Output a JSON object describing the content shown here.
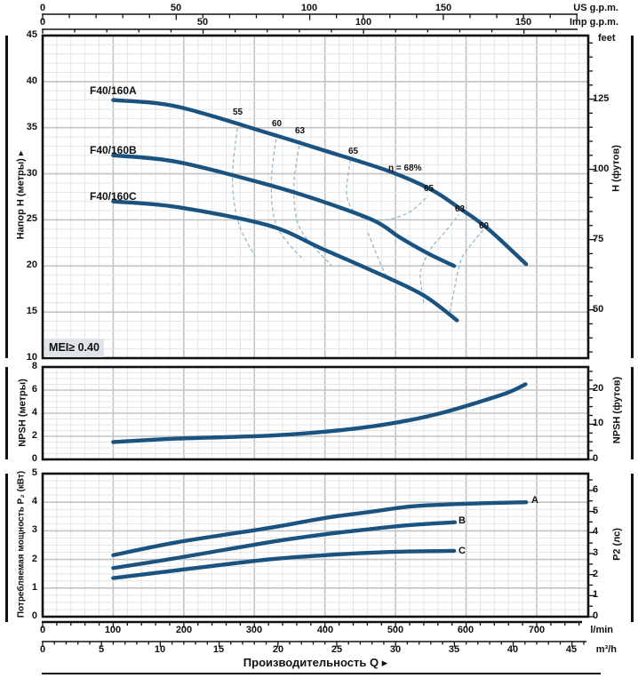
{
  "colors": {
    "curve": "#1b5380",
    "eff": "#8ab4cc",
    "grid_minor": "#e4e4e4",
    "grid_major": "#c3c3c3",
    "axis": "#111111",
    "mei_bg": "#dfe4ea"
  },
  "top_axes": {
    "us": {
      "ticks": [
        "0",
        "50",
        "100",
        "150"
      ],
      "unit": "US g.p.m."
    },
    "imp": {
      "ticks": [
        "0",
        "50",
        "100",
        "150"
      ],
      "unit": "Imp g.p.m."
    }
  },
  "head": {
    "left_label": "Напор H (метры) ▸",
    "right_label": "H (футов)",
    "right_unit": "feet",
    "left_ticks": [
      "45",
      "40",
      "35",
      "30",
      "25",
      "20",
      "15",
      "10"
    ],
    "right_ticks": [
      "125",
      "100",
      "75",
      "50"
    ],
    "curve_labels": [
      "F40/160A",
      "F40/160B",
      "F40/160C"
    ],
    "eff_labels": {
      "l55": "55",
      "l60": "60",
      "l63": "63",
      "l65": "65",
      "eta": "η = 68%",
      "r65": "65",
      "r63": "63",
      "r60": "60"
    },
    "mei": "MEI≥ 0.40"
  },
  "npsh": {
    "left_label": "NPSH (метры)",
    "right_label": "NPSH (футов)",
    "left_ticks": [
      "8",
      "6",
      "4",
      "2",
      "0"
    ],
    "right_ticks": [
      "20",
      "10",
      "0"
    ]
  },
  "power": {
    "left_label": "Потребляемая мощность P₂ (кВт)",
    "right_label": "P2 (лс)",
    "left_ticks": [
      "5",
      "4",
      "3",
      "2",
      "1",
      "0"
    ],
    "right_ticks": [
      "6",
      "5",
      "4",
      "3",
      "2",
      "1",
      "0"
    ],
    "curve_labels": [
      "A",
      "B",
      "C"
    ]
  },
  "x_axis": {
    "lmin_ticks": [
      "0",
      "100",
      "200",
      "300",
      "400",
      "500",
      "600",
      "700"
    ],
    "lmin_unit": "l/min",
    "m3h_ticks": [
      "0",
      "5",
      "10",
      "15",
      "20",
      "25",
      "30",
      "35",
      "40",
      "45"
    ],
    "m3h_unit": "m³/h",
    "label": "Производительность Q ▸"
  },
  "chart_data": {
    "type": "line",
    "x_unit": "l/min",
    "x_range_lmin": [
      0,
      773
    ],
    "charts": [
      {
        "name": "head_vs_flow",
        "ylabel": "Напор H (метры)",
        "ylabel_right": "H (футов)",
        "ylim": [
          10,
          45
        ],
        "grid": true,
        "series": [
          {
            "name": "F40/160A",
            "points": [
              [
                100,
                38.0
              ],
              [
                190,
                37.3
              ],
              [
                320,
                34.4
              ],
              [
                400,
                32.5
              ],
              [
                490,
                30.3
              ],
              [
                550,
                28.3
              ],
              [
                590,
                26.3
              ],
              [
                630,
                24.1
              ],
              [
                685,
                20.2
              ]
            ]
          },
          {
            "name": "F40/160B",
            "points": [
              [
                100,
                32.0
              ],
              [
                190,
                31.3
              ],
              [
                320,
                28.8
              ],
              [
                400,
                26.9
              ],
              [
                470,
                24.9
              ],
              [
                506,
                23.1
              ],
              [
                545,
                21.4
              ],
              [
                583,
                20.0
              ]
            ]
          },
          {
            "name": "F40/160C",
            "points": [
              [
                100,
                27.0
              ],
              [
                190,
                26.4
              ],
              [
                320,
                24.4
              ],
              [
                395,
                21.9
              ],
              [
                481,
                19.0
              ],
              [
                540,
                16.8
              ],
              [
                587,
                14.1
              ]
            ]
          }
        ],
        "efficiency_values": [
          55,
          60,
          63,
          65,
          68
        ],
        "best_efficiency_label": "η = 68%",
        "efficiency_contours": [
          {
            "value": 55,
            "points": [
              [
                277,
                35.6
              ],
              [
                269,
                29.6
              ],
              [
                277,
                24.8
              ],
              [
                301,
                21.0
              ]
            ]
          },
          {
            "value": 60,
            "points": [
              [
                332,
                34.4
              ],
              [
                324,
                29.1
              ],
              [
                332,
                24.3
              ],
              [
                370,
                20.6
              ]
            ]
          },
          {
            "value": 63,
            "points": [
              [
                365,
                33.7
              ],
              [
                356,
                28.6
              ],
              [
                365,
                24.0
              ],
              [
                410,
                20.0
              ]
            ]
          },
          {
            "value": 65,
            "points": [
              [
                436,
                31.5
              ],
              [
                431,
                27.6
              ],
              [
                449,
                25.4
              ],
              [
                485,
                25.0
              ],
              [
                516,
                25.7
              ],
              [
                534,
                26.7
              ],
              [
                546,
                27.6
              ]
            ]
          },
          {
            "value": 65,
            "points": [
              [
                461,
                23.6
              ],
              [
                475,
                20.9
              ],
              [
                488,
                18.8
              ],
              [
                496,
                18.2
              ]
            ]
          },
          {
            "value": 63,
            "points": [
              [
                540,
                16.0
              ],
              [
                535,
                19.0
              ],
              [
                542,
                20.7
              ],
              [
                552,
                22.1
              ],
              [
                569,
                23.6
              ],
              [
                590,
                25.6
              ]
            ]
          },
          {
            "value": 60,
            "points": [
              [
                577,
                15.0
              ],
              [
                582,
                17.0
              ],
              [
                593,
                20.7
              ],
              [
                608,
                22.4
              ],
              [
                624,
                23.9
              ]
            ]
          }
        ],
        "mei_note": "MEI≥ 0.40"
      },
      {
        "name": "npsh_vs_flow",
        "ylabel": "NPSH (метры)",
        "ylabel_right": "NPSH (футов)",
        "ylim": [
          0,
          8
        ],
        "series": [
          {
            "name": "NPSH",
            "points": [
              [
                100,
                1.5
              ],
              [
                190,
                1.8
              ],
              [
                320,
                2.05
              ],
              [
                400,
                2.4
              ],
              [
                460,
                2.8
              ],
              [
                520,
                3.4
              ],
              [
                570,
                4.1
              ],
              [
                620,
                5.0
              ],
              [
                660,
                5.8
              ],
              [
                684,
                6.5
              ]
            ]
          }
        ]
      },
      {
        "name": "power_vs_flow",
        "ylabel": "Потребляемая мощность P₂ (кВт)",
        "ylabel_right": "P2 (лс)",
        "ylim": [
          0,
          5
        ],
        "series": [
          {
            "name": "A",
            "points": [
              [
                100,
                2.15
              ],
              [
                190,
                2.6
              ],
              [
                320,
                3.1
              ],
              [
                400,
                3.45
              ],
              [
                460,
                3.65
              ],
              [
                520,
                3.85
              ],
              [
                570,
                3.92
              ],
              [
                630,
                3.97
              ],
              [
                685,
                4.0
              ]
            ]
          },
          {
            "name": "B",
            "points": [
              [
                100,
                1.7
              ],
              [
                190,
                2.05
              ],
              [
                320,
                2.6
              ],
              [
                400,
                2.88
              ],
              [
                460,
                3.05
              ],
              [
                520,
                3.2
              ],
              [
                584,
                3.3
              ]
            ]
          },
          {
            "name": "C",
            "points": [
              [
                100,
                1.35
              ],
              [
                190,
                1.62
              ],
              [
                320,
                2.0
              ],
              [
                400,
                2.15
              ],
              [
                460,
                2.23
              ],
              [
                520,
                2.28
              ],
              [
                583,
                2.3
              ]
            ]
          }
        ]
      }
    ]
  }
}
